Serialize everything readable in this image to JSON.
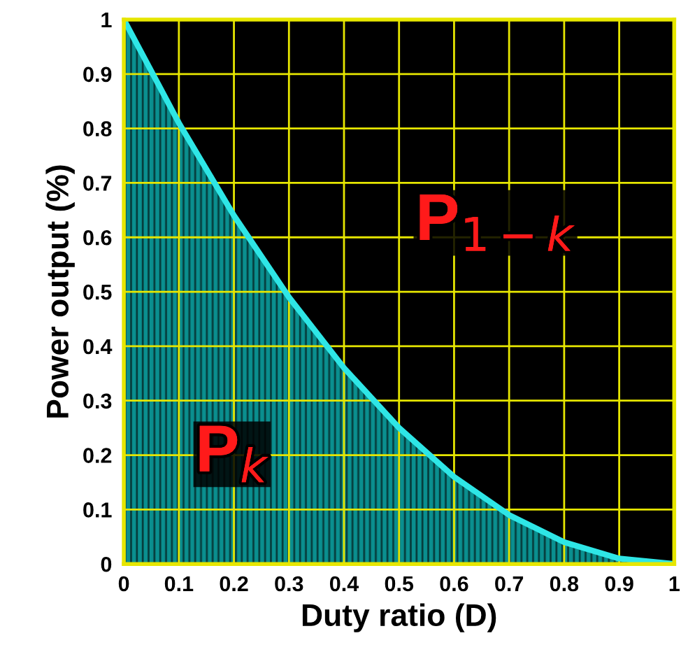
{
  "chart_data": {
    "type": "area",
    "xlabel": "Duty ratio (D)",
    "ylabel": "Power output (%)",
    "x": [
      0,
      0.1,
      0.2,
      0.3,
      0.4,
      0.5,
      0.6,
      0.7,
      0.8,
      0.9,
      1
    ],
    "series": [
      {
        "color": "#2ee6e6",
        "values": [
          1,
          0.81,
          0.64,
          0.49,
          0.36,
          0.25,
          0.16,
          0.09,
          0.04,
          0.01,
          0
        ]
      }
    ],
    "xlim": [
      0,
      1
    ],
    "ylim": [
      0,
      1
    ],
    "xticks": [
      0,
      0.1,
      0.2,
      0.3,
      0.4,
      0.5,
      0.6,
      0.7,
      0.8,
      0.9,
      1
    ],
    "yticks": [
      0,
      0.1,
      0.2,
      0.3,
      0.4,
      0.5,
      0.6,
      0.7,
      0.8,
      0.9,
      1
    ],
    "grid": true,
    "annotations": [
      "P$_{k}$",
      "P$_{1−k}$"
    ]
  }
}
